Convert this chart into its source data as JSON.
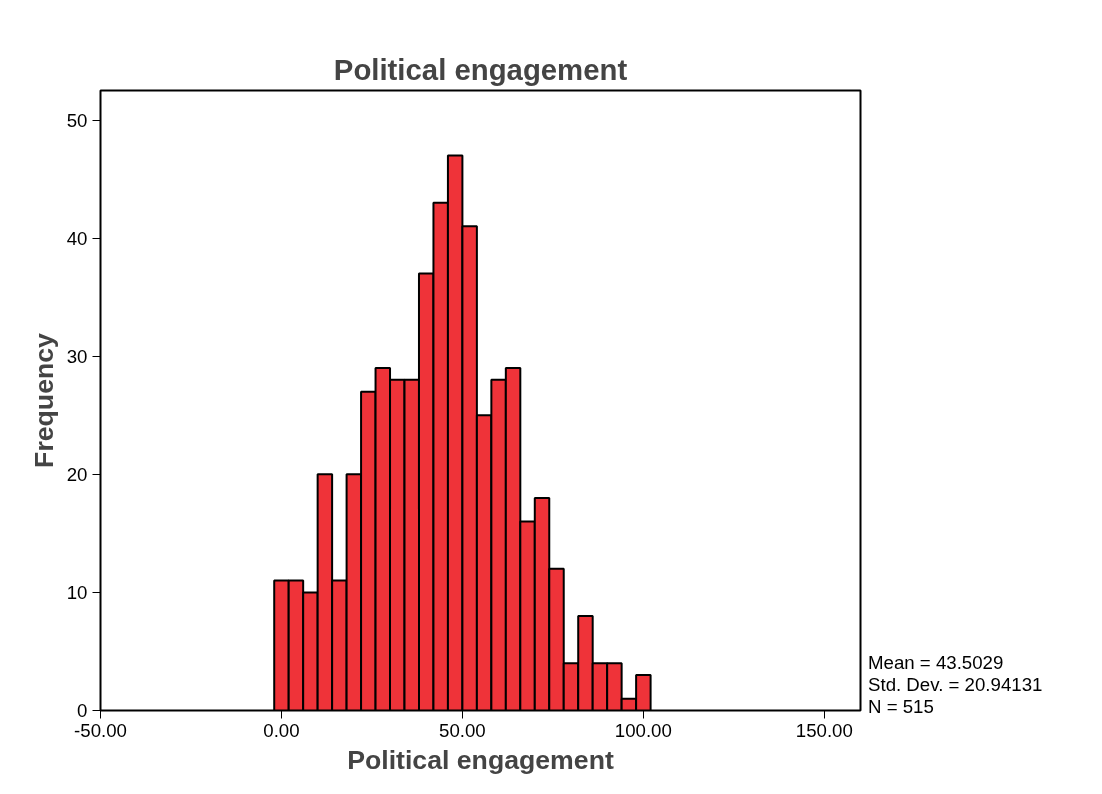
{
  "chart_data": {
    "type": "histogram",
    "title": "Political engagement",
    "xlabel": "Political engagement",
    "ylabel": "Frequency",
    "bins": [
      -2,
      2,
      6,
      10,
      14,
      18,
      22,
      26,
      30,
      34,
      38,
      42,
      46,
      50,
      54,
      58,
      62,
      66,
      70,
      74,
      78,
      82,
      86,
      90,
      94,
      98,
      102
    ],
    "values": [
      11,
      11,
      10,
      20,
      11,
      20,
      27,
      29,
      28,
      28,
      37,
      43,
      47,
      41,
      25,
      28,
      29,
      16,
      18,
      12,
      4,
      8,
      4,
      4,
      1,
      3
    ],
    "color": "#ef3339",
    "xlim": [
      -50,
      160
    ],
    "xticks": [
      {
        "value": -50,
        "label": "-50.00"
      },
      {
        "value": 0,
        "label": "0.00"
      },
      {
        "value": 50,
        "label": "50.00"
      },
      {
        "value": 100,
        "label": "100.00"
      },
      {
        "value": 150,
        "label": "150.00"
      }
    ],
    "ylim": [
      0,
      52.5
    ],
    "yticks": [
      0,
      10,
      20,
      30,
      40,
      50
    ],
    "grid": false,
    "annotations": [
      "Mean = 43.5029",
      "Std. Dev. = 20.94131",
      "N = 515"
    ]
  }
}
